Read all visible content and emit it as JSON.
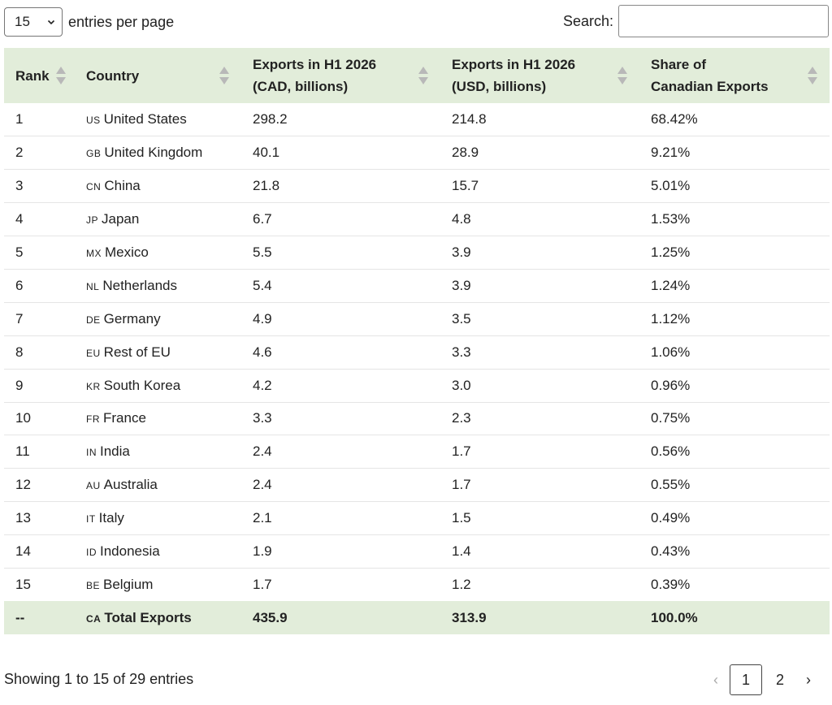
{
  "length": {
    "value": "15",
    "label": "entries per page"
  },
  "search": {
    "label": "Search:",
    "value": "",
    "placeholder": ""
  },
  "table": {
    "headers": {
      "rank": "Rank",
      "country": "Country",
      "cad_line1": "Exports in H1 2026",
      "cad_line2": "(CAD, billions)",
      "usd_line1": "Exports in H1 2026",
      "usd_line2": "(USD, billions)",
      "share_line1": "Share of",
      "share_line2": "Canadian Exports"
    },
    "rows": [
      {
        "rank": "1",
        "code": "US",
        "country": "United States",
        "cad": "298.2",
        "usd": "214.8",
        "share": "68.42%"
      },
      {
        "rank": "2",
        "code": "GB",
        "country": "United Kingdom",
        "cad": "40.1",
        "usd": "28.9",
        "share": "9.21%"
      },
      {
        "rank": "3",
        "code": "CN",
        "country": "China",
        "cad": "21.8",
        "usd": "15.7",
        "share": "5.01%"
      },
      {
        "rank": "4",
        "code": "JP",
        "country": "Japan",
        "cad": "6.7",
        "usd": "4.8",
        "share": "1.53%"
      },
      {
        "rank": "5",
        "code": "MX",
        "country": "Mexico",
        "cad": "5.5",
        "usd": "3.9",
        "share": "1.25%"
      },
      {
        "rank": "6",
        "code": "NL",
        "country": "Netherlands",
        "cad": "5.4",
        "usd": "3.9",
        "share": "1.24%"
      },
      {
        "rank": "7",
        "code": "DE",
        "country": "Germany",
        "cad": "4.9",
        "usd": "3.5",
        "share": "1.12%"
      },
      {
        "rank": "8",
        "code": "EU",
        "country": "Rest of EU",
        "cad": "4.6",
        "usd": "3.3",
        "share": "1.06%"
      },
      {
        "rank": "9",
        "code": "KR",
        "country": "South Korea",
        "cad": "4.2",
        "usd": "3.0",
        "share": "0.96%"
      },
      {
        "rank": "10",
        "code": "FR",
        "country": "France",
        "cad": "3.3",
        "usd": "2.3",
        "share": "0.75%"
      },
      {
        "rank": "11",
        "code": "IN",
        "country": "India",
        "cad": "2.4",
        "usd": "1.7",
        "share": "0.56%"
      },
      {
        "rank": "12",
        "code": "AU",
        "country": "Australia",
        "cad": "2.4",
        "usd": "1.7",
        "share": "0.55%"
      },
      {
        "rank": "13",
        "code": "IT",
        "country": "Italy",
        "cad": "2.1",
        "usd": "1.5",
        "share": "0.49%"
      },
      {
        "rank": "14",
        "code": "ID",
        "country": "Indonesia",
        "cad": "1.9",
        "usd": "1.4",
        "share": "0.43%"
      },
      {
        "rank": "15",
        "code": "BE",
        "country": "Belgium",
        "cad": "1.7",
        "usd": "1.2",
        "share": "0.39%"
      }
    ],
    "total": {
      "rank": "--",
      "code": "CA",
      "country": "Total Exports",
      "cad": "435.9",
      "usd": "313.9",
      "share": "100.0%"
    }
  },
  "info": "Showing 1 to 15 of 29 entries",
  "pagination": {
    "prev": "‹",
    "pages": [
      "1",
      "2"
    ],
    "current": "1",
    "next": "›"
  },
  "colors": {
    "header_bg": "#e2edda",
    "row_border": "#e5e5e5",
    "sort_icon": "#b8b8b8"
  },
  "icons": {
    "sort": "sort-both-icon",
    "select": "chevron-down-icon"
  }
}
